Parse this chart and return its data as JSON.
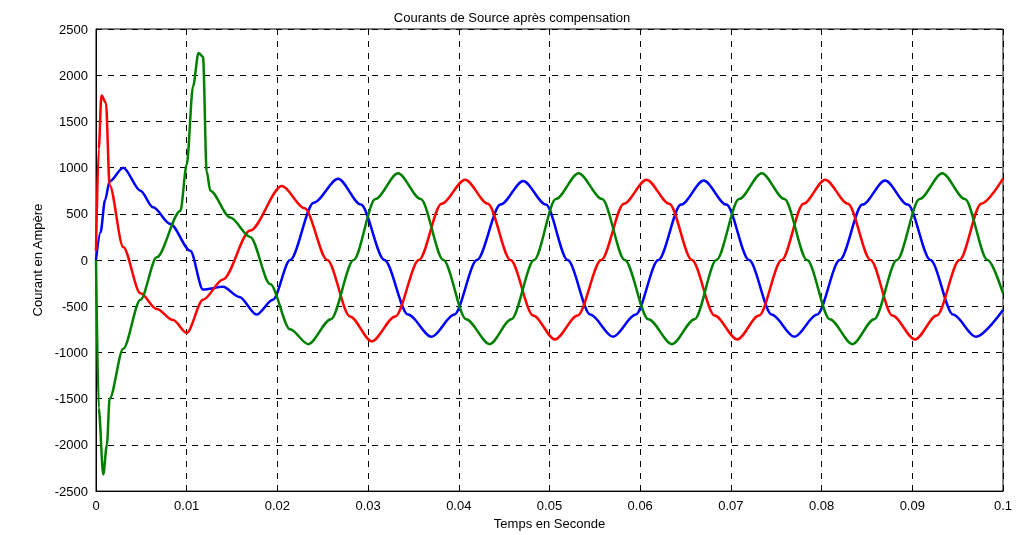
{
  "chart_data": {
    "type": "line",
    "title": "Courants de Source après compensation",
    "xlabel": "Temps en Seconde",
    "ylabel": "Courant en Ampère",
    "xlim": [
      0,
      0.1
    ],
    "xticks": [
      0,
      0.01,
      0.02,
      0.03,
      0.04,
      0.05,
      0.06,
      0.07,
      0.08,
      0.09,
      0.1
    ],
    "ylim": [
      -2500,
      2500
    ],
    "yticks": [
      -2500,
      -2000,
      -1500,
      -1000,
      -500,
      0,
      500,
      1000,
      1500,
      2000,
      2500
    ],
    "grid": true,
    "legend": false,
    "marker": "none",
    "line_style": "solid",
    "series": [
      {
        "color": "#0000ff",
        "x": [
          0,
          0.0005,
          0.001,
          0.0015,
          0.003,
          0.0049,
          0.0063,
          0.0082,
          0.0104,
          0.0118,
          0.014,
          0.0158,
          0.0177,
          0.0195,
          0.0214,
          0.024,
          0.0267,
          0.0292,
          0.0318,
          0.0344,
          0.037,
          0.0395,
          0.042,
          0.0446,
          0.0471,
          0.0496,
          0.052,
          0.0545,
          0.057,
          0.0595,
          0.062,
          0.0645,
          0.067,
          0.0695,
          0.072,
          0.0745,
          0.077,
          0.0795,
          0.082,
          0.0845,
          0.087,
          0.0895,
          0.092,
          0.0945,
          0.097,
          0.1
        ],
        "values": [
          0,
          300,
          650,
          850,
          1000,
          750,
          570,
          390,
          100,
          -320,
          -290,
          -400,
          -590,
          -430,
          0,
          620,
          880,
          600,
          0,
          -590,
          -830,
          -590,
          0,
          600,
          855,
          600,
          0,
          -590,
          -830,
          -590,
          0,
          600,
          860,
          600,
          0,
          -590,
          -830,
          -590,
          0,
          600,
          860,
          600,
          0,
          -590,
          -830,
          -540
        ]
      },
      {
        "color": "#ff0000",
        "x": [
          0,
          0.0003,
          0.0006,
          0.0011,
          0.0015,
          0.003,
          0.0049,
          0.0067,
          0.0085,
          0.01,
          0.0118,
          0.014,
          0.017,
          0.0205,
          0.023,
          0.0255,
          0.028,
          0.0304,
          0.033,
          0.0356,
          0.0381,
          0.0407,
          0.0432,
          0.0457,
          0.0482,
          0.0506,
          0.0531,
          0.0557,
          0.0582,
          0.0607,
          0.0632,
          0.0657,
          0.0682,
          0.0707,
          0.0731,
          0.0756,
          0.078,
          0.0804,
          0.0829,
          0.0854,
          0.0878,
          0.0903,
          0.0927,
          0.0952,
          0.0976,
          0.1
        ],
        "values": [
          100,
          1200,
          1780,
          1700,
          810,
          140,
          -360,
          -530,
          -650,
          -790,
          -430,
          -210,
          320,
          800,
          560,
          0,
          -610,
          -880,
          -610,
          0,
          610,
          870,
          610,
          0,
          -600,
          -860,
          -600,
          0,
          610,
          870,
          610,
          0,
          -600,
          -860,
          -600,
          0,
          610,
          870,
          610,
          0,
          -600,
          -860,
          -600,
          0,
          610,
          880
        ]
      },
      {
        "color": "#008000",
        "x": [
          0,
          0.0003,
          0.0008,
          0.0012,
          0.0015,
          0.003,
          0.0049,
          0.0067,
          0.0093,
          0.01,
          0.0107,
          0.0113,
          0.0118,
          0.0122,
          0.0126,
          0.0148,
          0.017,
          0.0192,
          0.0214,
          0.0234,
          0.0259,
          0.0284,
          0.0308,
          0.0333,
          0.0358,
          0.0383,
          0.0408,
          0.0434,
          0.0458,
          0.0483,
          0.0507,
          0.0532,
          0.0558,
          0.0583,
          0.0609,
          0.0635,
          0.066,
          0.0684,
          0.0709,
          0.0734,
          0.0759,
          0.0784,
          0.0809,
          0.0834,
          0.0858,
          0.0883,
          0.0908,
          0.0933,
          0.0958,
          0.0983,
          0.1
        ],
        "values": [
          0,
          -1600,
          -2320,
          -2000,
          -1500,
          -960,
          -430,
          30,
          530,
          1030,
          1880,
          2240,
          2200,
          960,
          750,
          460,
          250,
          -260,
          -750,
          -910,
          -640,
          0,
          660,
          940,
          660,
          0,
          -640,
          -910,
          -640,
          0,
          660,
          940,
          660,
          0,
          -640,
          -910,
          -640,
          0,
          660,
          940,
          660,
          0,
          -640,
          -910,
          -640,
          0,
          660,
          940,
          660,
          0,
          -360
        ]
      }
    ]
  }
}
